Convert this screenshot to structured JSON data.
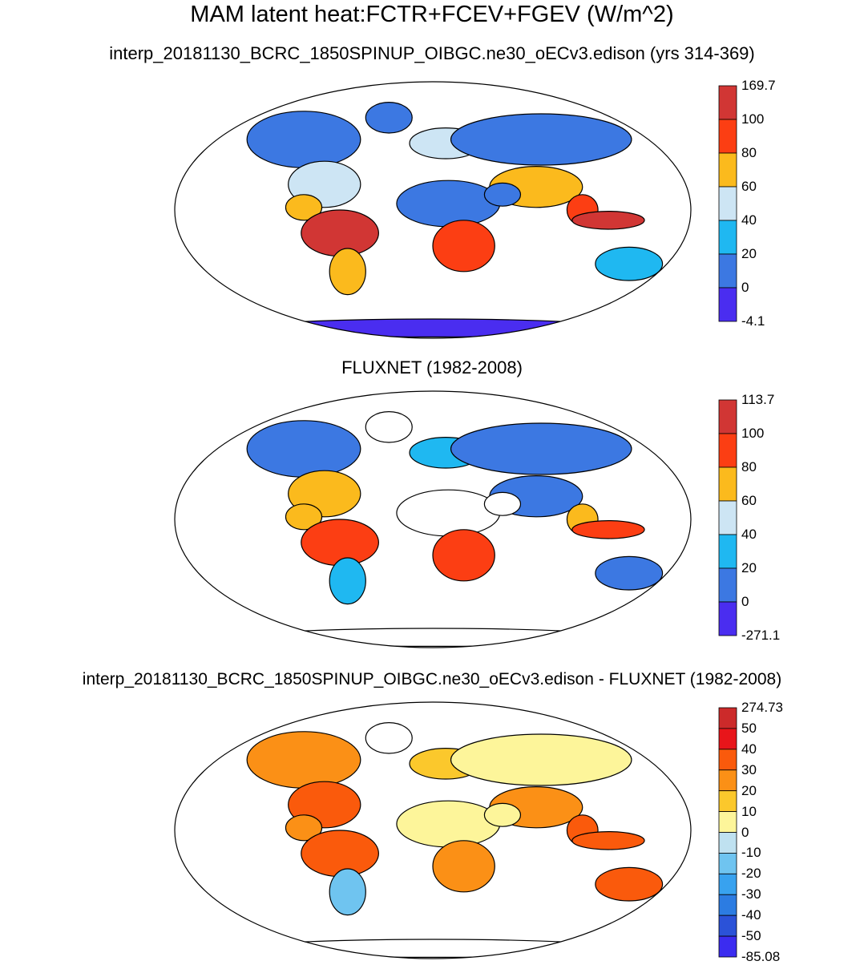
{
  "figure": {
    "title": "MAM latent heat:FCTR+FCEV+FGEV (W/m^2)"
  },
  "panels": [
    {
      "title": "interp_20181130_BCRC_1850SPINUP_OIBGC.ne30_oECv3.edison (yrs 314-369)",
      "colorbar": {
        "labels": [
          "169.7",
          "100",
          "80",
          "60",
          "40",
          "20",
          "0",
          "-4.1"
        ],
        "colors": [
          "#d13634",
          "#fc3e13",
          "#fbba1d",
          "#cde5f4",
          "#1fb8f1",
          "#3c78e2",
          "#4a2df0"
        ]
      }
    },
    {
      "title": "FLUXNET (1982-2008)",
      "colorbar": {
        "labels": [
          "113.7",
          "100",
          "80",
          "60",
          "40",
          "20",
          "0",
          "-271.1"
        ],
        "colors": [
          "#d13634",
          "#fc3e13",
          "#fbba1d",
          "#cde5f4",
          "#1fb8f1",
          "#3c78e2",
          "#4a2df0"
        ]
      }
    },
    {
      "title": "interp_20181130_BCRC_1850SPINUP_OIBGC.ne30_oECv3.edison - FLUXNET (1982-2008)",
      "colorbar": {
        "labels": [
          "274.73",
          "50",
          "40",
          "30",
          "20",
          "10",
          "0",
          "-10",
          "-20",
          "-30",
          "-40",
          "-50",
          "-85.08"
        ],
        "colors": [
          "#cc2a2a",
          "#e8151a",
          "#fa5a0c",
          "#fb9016",
          "#fbc82c",
          "#fdf59a",
          "#bfe1f0",
          "#6fc4f0",
          "#38a2ef",
          "#2c7ce2",
          "#2b52d8",
          "#3b2cf0"
        ]
      }
    }
  ]
}
